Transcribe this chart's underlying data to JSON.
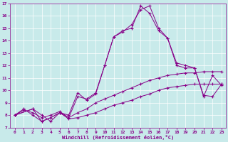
{
  "xlabel": "Windchill (Refroidissement éolien,°C)",
  "bg_color": "#c8eaea",
  "line_color": "#880088",
  "xlim": [
    -0.5,
    23.5
  ],
  "ylim": [
    7,
    17
  ],
  "xticks": [
    0,
    1,
    2,
    3,
    4,
    5,
    6,
    7,
    8,
    9,
    10,
    11,
    12,
    13,
    14,
    15,
    16,
    17,
    18,
    19,
    20,
    21,
    22,
    23
  ],
  "yticks": [
    7,
    8,
    9,
    10,
    11,
    12,
    13,
    14,
    15,
    16,
    17
  ],
  "line1_x": [
    0,
    1,
    2,
    3,
    4,
    5,
    6,
    7,
    8,
    9,
    10,
    11,
    12,
    13,
    14,
    15,
    16,
    17,
    18,
    19,
    20,
    21,
    22,
    23
  ],
  "line1_y": [
    8.0,
    8.5,
    8.0,
    7.5,
    7.8,
    8.2,
    7.7,
    7.8,
    8.0,
    8.2,
    8.5,
    8.8,
    9.0,
    9.2,
    9.5,
    9.7,
    10.0,
    10.2,
    10.3,
    10.4,
    10.5,
    10.5,
    10.5,
    10.5
  ],
  "line2_x": [
    0,
    1,
    2,
    3,
    4,
    5,
    6,
    7,
    8,
    9,
    10,
    11,
    12,
    13,
    14,
    15,
    16,
    17,
    18,
    19,
    20,
    21,
    22,
    23
  ],
  "line2_y": [
    8.0,
    8.4,
    8.2,
    7.8,
    8.0,
    8.3,
    7.8,
    8.2,
    8.5,
    9.0,
    9.3,
    9.6,
    9.9,
    10.2,
    10.5,
    10.8,
    11.0,
    11.2,
    11.3,
    11.4,
    11.4,
    11.5,
    11.5,
    11.5
  ],
  "line3_x": [
    0,
    2,
    3,
    4,
    5,
    6,
    7,
    8,
    9,
    10,
    11,
    12,
    13,
    14,
    15,
    16,
    17,
    18,
    19,
    20,
    21,
    22,
    23
  ],
  "line3_y": [
    8.0,
    8.5,
    7.5,
    7.8,
    8.2,
    7.8,
    9.5,
    9.3,
    9.8,
    12.0,
    14.3,
    14.8,
    15.0,
    16.8,
    16.2,
    14.8,
    14.2,
    12.2,
    12.0,
    11.8,
    9.5,
    11.2,
    10.4
  ],
  "line4_x": [
    0,
    2,
    3,
    4,
    5,
    6,
    7,
    8,
    9,
    10,
    11,
    12,
    13,
    14,
    15,
    16,
    17,
    18,
    19,
    20,
    21,
    22,
    23
  ],
  "line4_y": [
    8.0,
    8.5,
    8.0,
    7.5,
    8.2,
    8.0,
    9.8,
    9.2,
    9.7,
    12.0,
    14.3,
    14.7,
    15.3,
    16.5,
    16.8,
    15.0,
    14.2,
    12.0,
    11.8,
    11.8,
    9.6,
    9.5,
    10.5
  ]
}
